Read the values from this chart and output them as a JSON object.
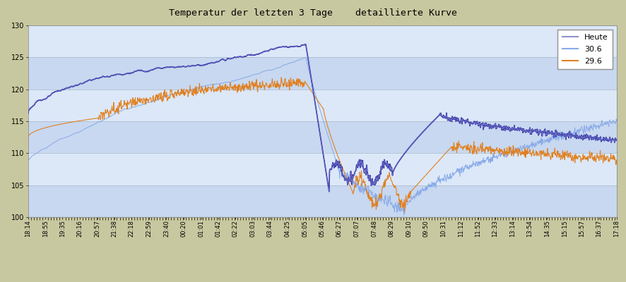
{
  "title": "Temperatur der letzten 3 Tage    detaillierte Kurve",
  "ylim": [
    100,
    130
  ],
  "yticks": [
    100,
    105,
    110,
    115,
    120,
    125,
    130
  ],
  "bg_color": "#c8c8a0",
  "band_colors": [
    "#c8d8f0",
    "#dce8f8"
  ],
  "heute_color1": "#2020a0",
  "heute_color2": "#9090d0",
  "day30_color": "#88aae8",
  "day29_color": "#e08020",
  "x_labels": [
    "18:14",
    "18:55",
    "19:35",
    "20:16",
    "20:57",
    "21:38",
    "22:18",
    "22:59",
    "23:40",
    "00:20",
    "01:01",
    "01:42",
    "02:22",
    "03:03",
    "03:44",
    "04:25",
    "05:05",
    "05:46",
    "06:27",
    "07:07",
    "07:48",
    "08:29",
    "09:10",
    "09:50",
    "10:31",
    "11:12",
    "11:52",
    "12:33",
    "13:14",
    "13:54",
    "14:35",
    "15:15",
    "15:57",
    "16:37",
    "17:18"
  ],
  "n_points": 1440,
  "drop_idx": 0.472,
  "legend_labels": [
    "Heute",
    "30.6",
    "29.6"
  ]
}
